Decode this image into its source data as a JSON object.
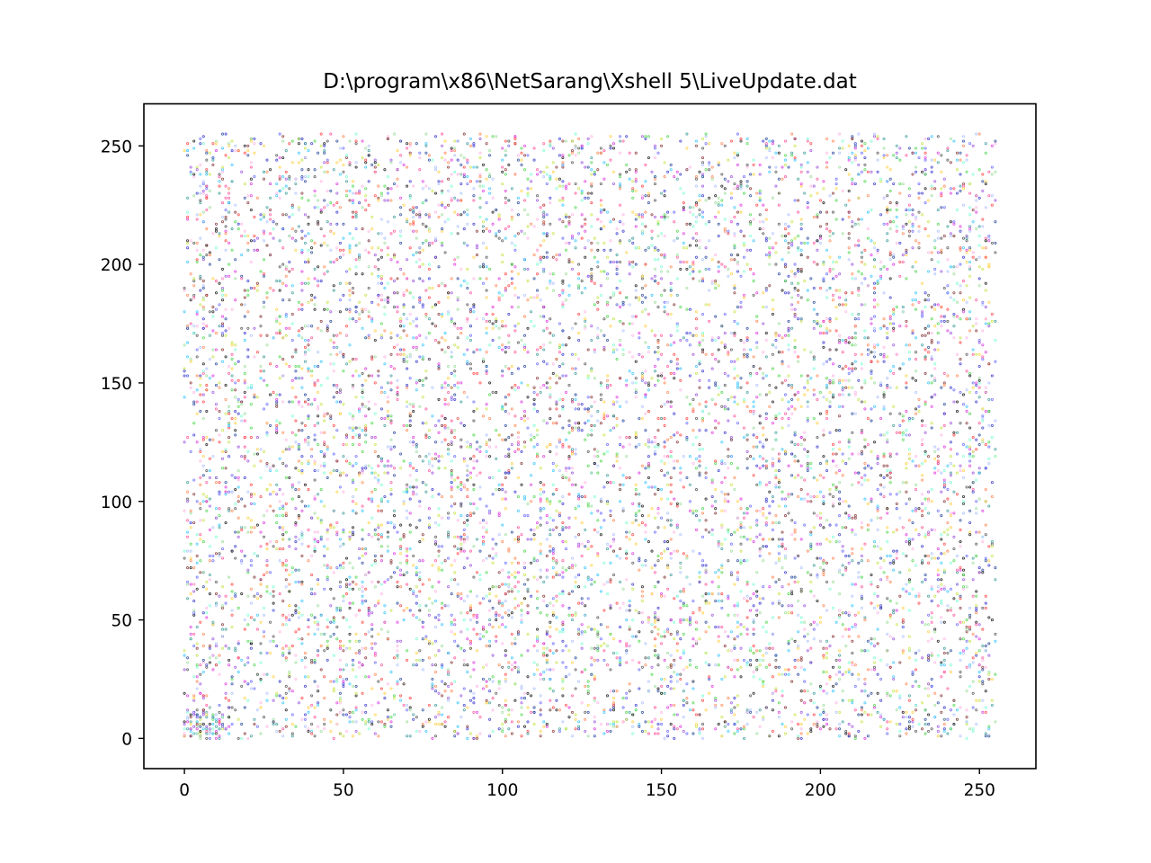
{
  "chart_data": {
    "type": "scatter",
    "title": "D:\\program\\x86\\NetSarang\\Xshell 5\\LiveUpdate.dat",
    "xlabel": "",
    "ylabel": "",
    "xlim": [
      -12.75,
      267.75
    ],
    "ylim": [
      -12.75,
      267.75
    ],
    "xticks": [
      0,
      50,
      100,
      150,
      200,
      250
    ],
    "yticks": [
      0,
      50,
      100,
      150,
      200,
      250
    ],
    "grid": false,
    "legend": "none",
    "point_range": [
      0,
      255
    ],
    "approx_point_count": 9000,
    "colors": [
      "#ff5aa0",
      "#e040e0",
      "#3f3fd0",
      "#7070ff",
      "#40c8ff",
      "#7fffd4",
      "#56d856",
      "#c8e650",
      "#ffd24a",
      "#ff8c5a",
      "#ff4a4a",
      "#a05ae0",
      "#46a0a0",
      "#5a5a5a",
      "#1e1e1e",
      "#8c3c3c",
      "#2f4f9f",
      "#9fdf9f",
      "#ffb6e6",
      "#b0c4ff"
    ],
    "marker": "dot"
  }
}
